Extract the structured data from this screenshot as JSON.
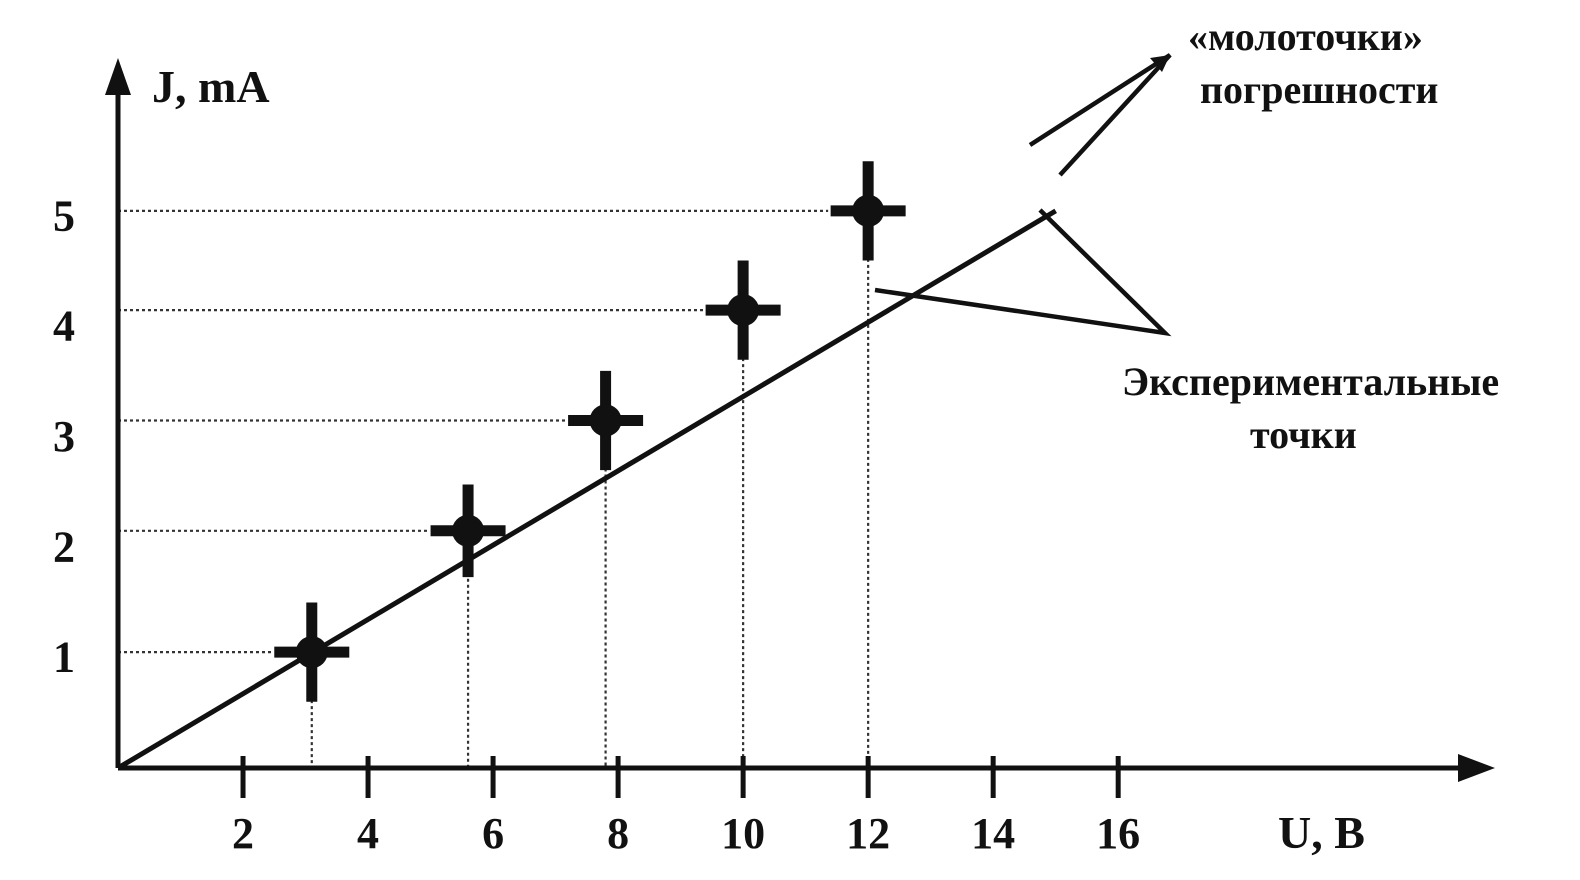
{
  "chart_data": {
    "type": "scatter",
    "title": "",
    "xlabel": "U, B",
    "ylabel": "J, mA",
    "x_ticks": [
      2,
      4,
      6,
      8,
      10,
      12,
      14,
      16
    ],
    "y_ticks": [
      1,
      2,
      3,
      4,
      5
    ],
    "xlim": [
      0,
      21.5
    ],
    "ylim": [
      0,
      6.1
    ],
    "grid": false,
    "fit_line": {
      "from": [
        0,
        0
      ],
      "to": [
        15,
        5.05
      ]
    },
    "points": [
      {
        "x": 3.1,
        "y": 1.05,
        "x_err": 0.6,
        "y_err": 0.45
      },
      {
        "x": 5.6,
        "y": 2.15,
        "x_err": 0.6,
        "y_err": 0.42
      },
      {
        "x": 7.8,
        "y": 3.15,
        "x_err": 0.6,
        "y_err": 0.45
      },
      {
        "x": 10.0,
        "y": 4.15,
        "x_err": 0.6,
        "y_err": 0.45
      },
      {
        "x": 12.0,
        "y": 5.05,
        "x_err": 0.6,
        "y_err": 0.45
      }
    ],
    "annotations": [
      {
        "id": "error-bars",
        "lines": [
          "«молоточки»",
          "погрешности"
        ]
      },
      {
        "id": "experimental-points",
        "lines": [
          "Экспериментальные",
          "точки"
        ]
      }
    ]
  }
}
